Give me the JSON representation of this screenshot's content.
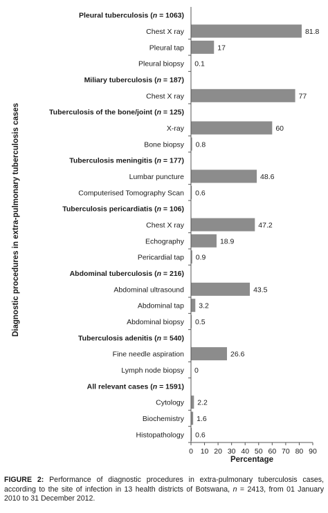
{
  "chart_data": {
    "type": "bar",
    "orientation": "horizontal",
    "ylabel": "Diagnostic procedures in extra-pulmonary tuberculosis cases",
    "xlabel": "Percentage",
    "xlim": [
      0,
      90
    ],
    "xticks": [
      0,
      10,
      20,
      30,
      40,
      50,
      60,
      70,
      80,
      90
    ],
    "bar_color": "#8c8c8c",
    "grid": false,
    "legend": "none",
    "groups": [
      {
        "header": "Pleural tuberculosis (n = 1063)",
        "header_pre": "Pleural tuberculosis (",
        "header_italic": "n",
        "header_post": " = 1063)",
        "items": [
          {
            "label": "Chest X ray",
            "value": 81.8,
            "value_label": "81.8"
          },
          {
            "label": "Pleural tap",
            "value": 17,
            "value_label": "17"
          },
          {
            "label": "Pleural biopsy",
            "value": 0.1,
            "value_label": "0.1"
          }
        ]
      },
      {
        "header": "Miliary tuberculosis (n = 187)",
        "header_pre": "Miliary tuberculosis (",
        "header_italic": "n",
        "header_post": " = 187)",
        "items": [
          {
            "label": "Chest X ray",
            "value": 77,
            "value_label": "77"
          }
        ]
      },
      {
        "header": "Tuberculosis of the bone/joint (n = 125)",
        "header_pre": "Tuberculosis of the bone/joint (",
        "header_italic": "n",
        "header_post": " = 125)",
        "items": [
          {
            "label": "X-ray",
            "value": 60,
            "value_label": "60"
          },
          {
            "label": "Bone biopsy",
            "value": 0.8,
            "value_label": "0.8"
          }
        ]
      },
      {
        "header": "Tuberculosis meningitis (n = 177)",
        "header_pre": "Tuberculosis meningitis (",
        "header_italic": "n",
        "header_post": " = 177)",
        "items": [
          {
            "label": "Lumbar puncture",
            "value": 48.6,
            "value_label": "48.6"
          },
          {
            "label": "Computerised Tomography Scan",
            "value": 0.6,
            "value_label": "0.6"
          }
        ]
      },
      {
        "header": "Tuberculosis pericardiatis (n = 106)",
        "header_pre": "Tuberculosis pericardiatis (",
        "header_italic": "n",
        "header_post": " = 106)",
        "items": [
          {
            "label": "Chest X ray",
            "value": 47.2,
            "value_label": "47.2"
          },
          {
            "label": "Echography",
            "value": 18.9,
            "value_label": "18.9"
          },
          {
            "label": "Pericardial tap",
            "value": 0.9,
            "value_label": "0.9"
          }
        ]
      },
      {
        "header": "Abdominal tuberculosis (n = 216)",
        "header_pre": "Abdominal tuberculosis (",
        "header_italic": "n",
        "header_post": " = 216)",
        "items": [
          {
            "label": "Abdominal ultrasound",
            "value": 43.5,
            "value_label": "43.5"
          },
          {
            "label": "Abdominal tap",
            "value": 3.2,
            "value_label": "3.2"
          },
          {
            "label": "Abdominal biopsy",
            "value": 0.5,
            "value_label": "0.5"
          }
        ]
      },
      {
        "header": "Tuberculosis adenitis (n = 540)",
        "header_pre": "Tuberculosis adenitis (",
        "header_italic": "n",
        "header_post": " = 540)",
        "items": [
          {
            "label": "Fine needle aspiration",
            "value": 26.6,
            "value_label": "26.6"
          },
          {
            "label": "Lymph node biopsy",
            "value": 0,
            "value_label": "0"
          }
        ]
      },
      {
        "header": "All relevant cases (n = 1591)",
        "header_pre": "All relevant cases (",
        "header_italic": "n",
        "header_post": " = 1591)",
        "items": [
          {
            "label": "Cytology",
            "value": 2.2,
            "value_label": "2.2"
          },
          {
            "label": "Biochemistry",
            "value": 1.6,
            "value_label": "1.6"
          },
          {
            "label": "Histopathology",
            "value": 0.6,
            "value_label": "0.6"
          }
        ]
      }
    ]
  },
  "caption": {
    "label": "FIGURE 2:",
    "text_1": " Performance of diagnostic procedures in extra-pulmonary tuberculosis cases, according to the site of infection in 13 health districts of Botswana, ",
    "italic_n": "n",
    "text_2": " = 2413, from 01 January 2010 to 31 December 2012."
  }
}
